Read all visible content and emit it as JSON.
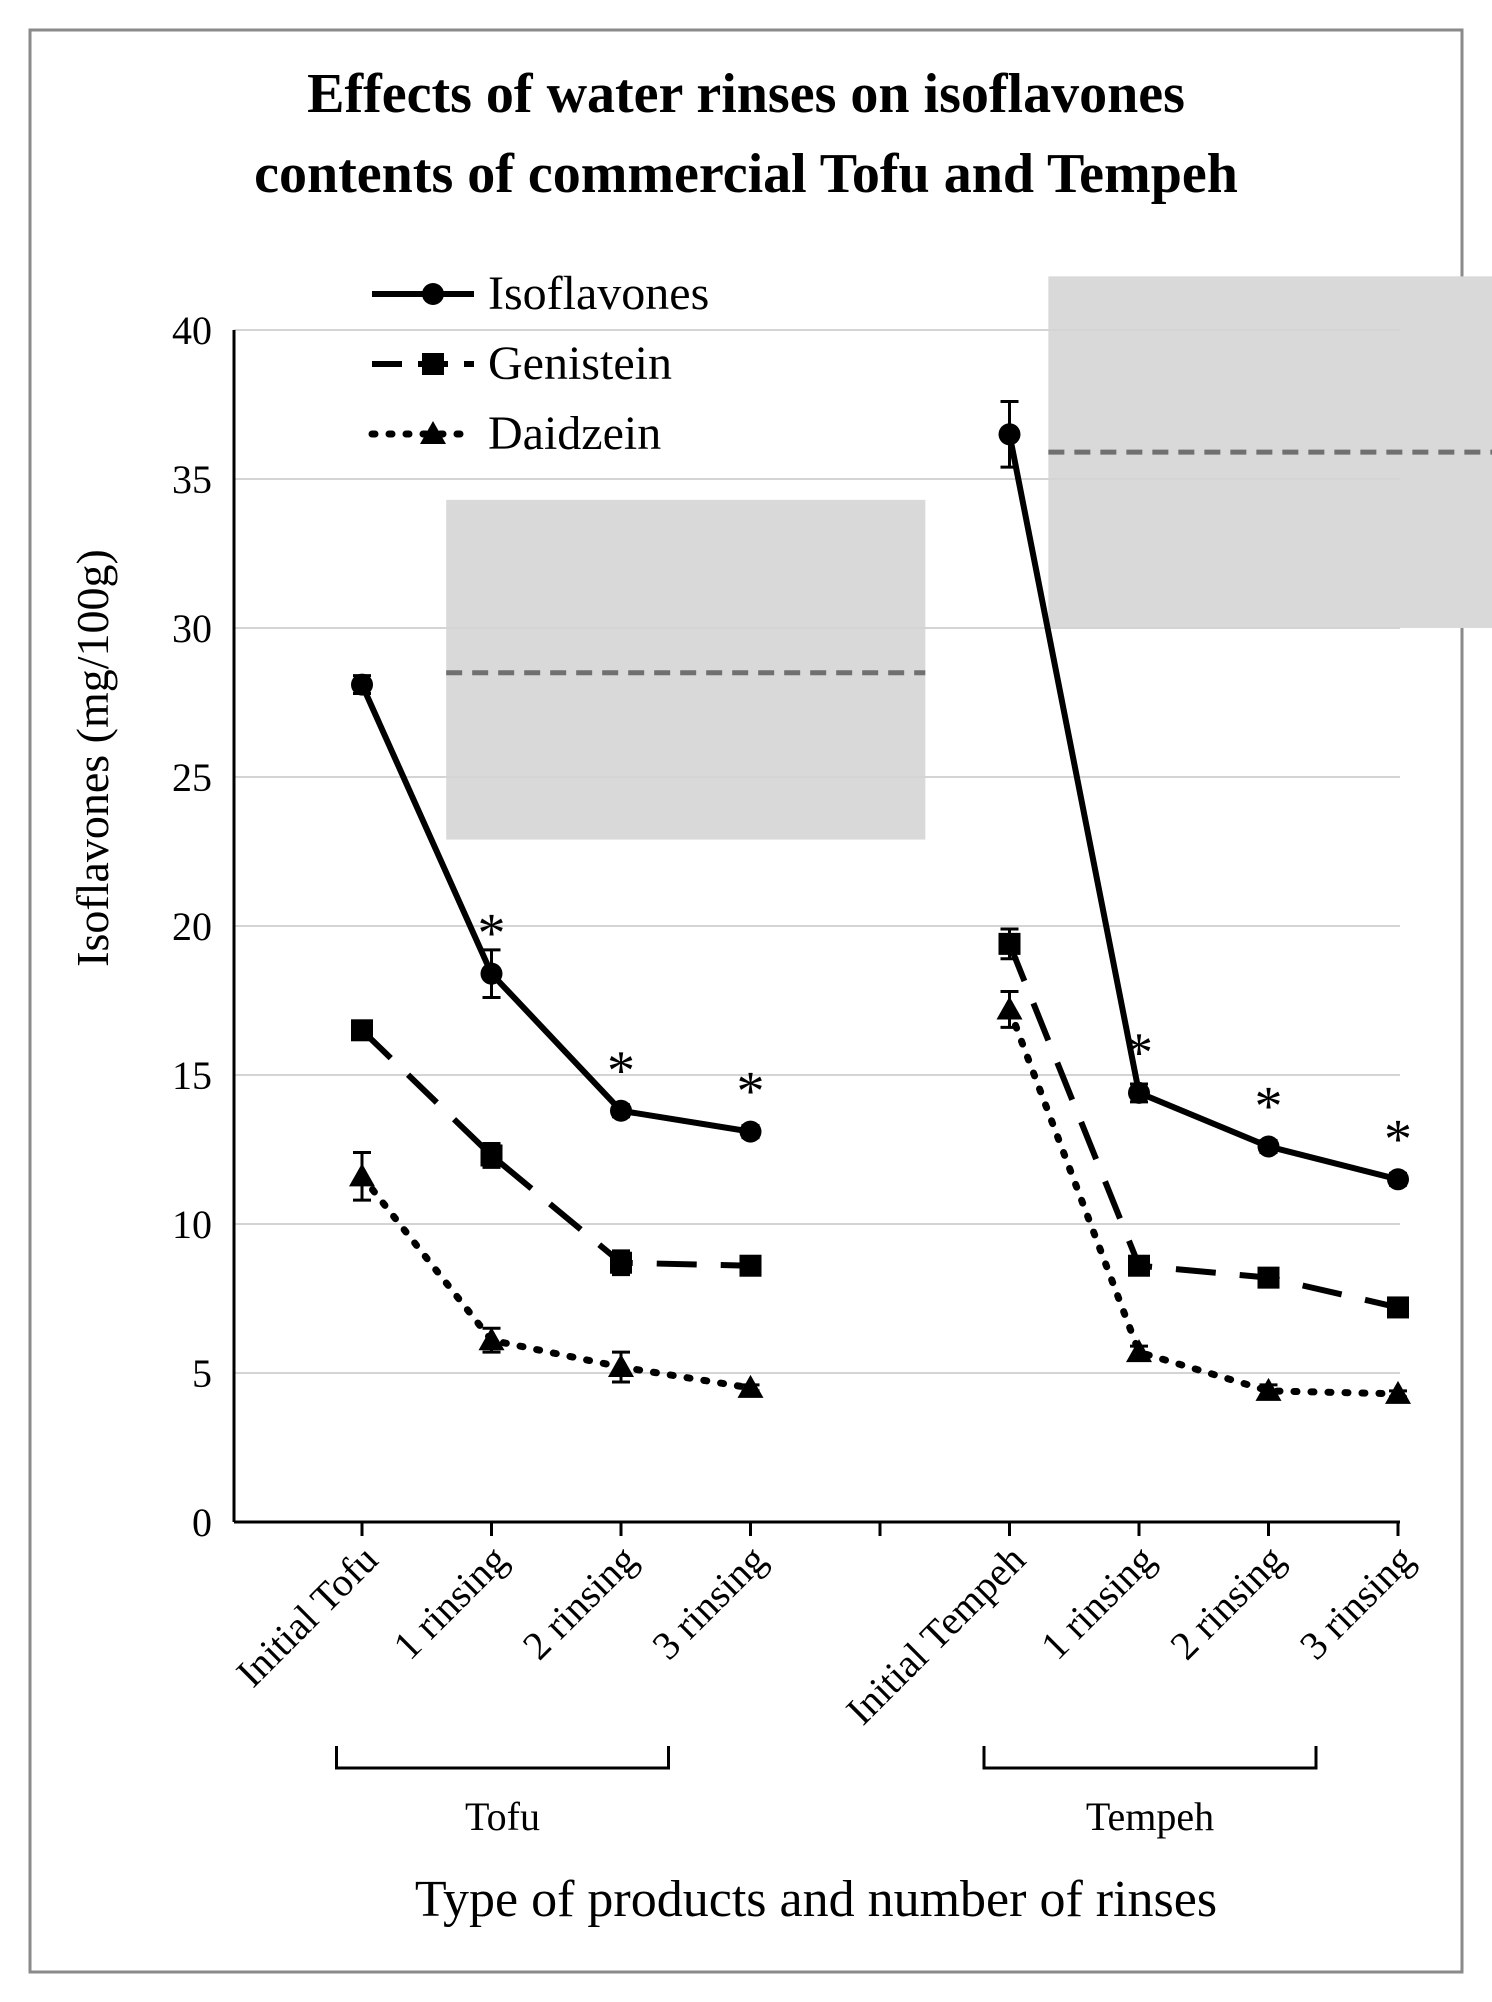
{
  "chart_data": {
    "type": "line",
    "title_lines": [
      "Effects of water rinses on isoflavones",
      "contents of commercial Tofu and Tempeh"
    ],
    "xlabel": "Type of products and number of rinses",
    "ylabel": "Isoflavones (mg/100g)",
    "ylim": [
      0,
      40
    ],
    "yticks": [
      0,
      5,
      10,
      15,
      20,
      25,
      30,
      35,
      40
    ],
    "grid": true,
    "legend_position": "top-left",
    "categories": [
      "Initial Tofu",
      "1 rinsing",
      "2 rinsing",
      "3 rinsing",
      "",
      "Initial Tempeh",
      "1 rinsing",
      "2 rinsing",
      "3 rinsing"
    ],
    "groups": [
      {
        "label": "Tofu",
        "from": 1,
        "to": 3
      },
      {
        "label": "Tempeh",
        "from": 6,
        "to": 8
      }
    ],
    "series": [
      {
        "name": "Isoflavones",
        "style": "solid",
        "marker": "circle",
        "values": [
          28.1,
          18.4,
          13.8,
          13.1,
          null,
          36.5,
          14.4,
          12.6,
          11.5
        ],
        "errors": [
          0.3,
          0.8,
          0.2,
          0.2,
          null,
          1.1,
          0.3,
          0.2,
          0.2
        ]
      },
      {
        "name": "Genistein",
        "style": "dashed",
        "marker": "square",
        "values": [
          16.5,
          12.3,
          8.7,
          8.6,
          null,
          19.4,
          8.6,
          8.2,
          7.2
        ],
        "errors": [
          0.2,
          0.4,
          0.4,
          0.2,
          null,
          0.5,
          0.3,
          0.3,
          0.2
        ]
      },
      {
        "name": "Daidzein",
        "style": "dotted",
        "marker": "triangle",
        "values": [
          11.6,
          6.1,
          5.2,
          4.5,
          null,
          17.2,
          5.7,
          4.4,
          4.3
        ],
        "errors": [
          0.8,
          0.4,
          0.5,
          0.1,
          null,
          0.6,
          0.2,
          0.2,
          0.1
        ]
      }
    ],
    "significance_markers": [
      {
        "index": 1,
        "label": "*"
      },
      {
        "index": 2,
        "label": "*"
      },
      {
        "index": 3,
        "label": "*"
      },
      {
        "index": 6,
        "label": "*"
      },
      {
        "index": 7,
        "label": "*"
      },
      {
        "index": 8,
        "label": "*"
      }
    ],
    "reference_bands": [
      {
        "x_from": 0.65,
        "x_to": 4.35,
        "y_from": 22.9,
        "y_to": 34.3,
        "mean": 28.5
      },
      {
        "x_from": 5.3,
        "x_to": 9.3,
        "y_from": 30.0,
        "y_to": 41.8,
        "mean": 35.9
      }
    ],
    "colors": {
      "line": "#000000",
      "band": "#d9d9d9",
      "reference_line": "#707070",
      "grid": "#d4d4d4",
      "frame": "#8a8a8a"
    }
  }
}
